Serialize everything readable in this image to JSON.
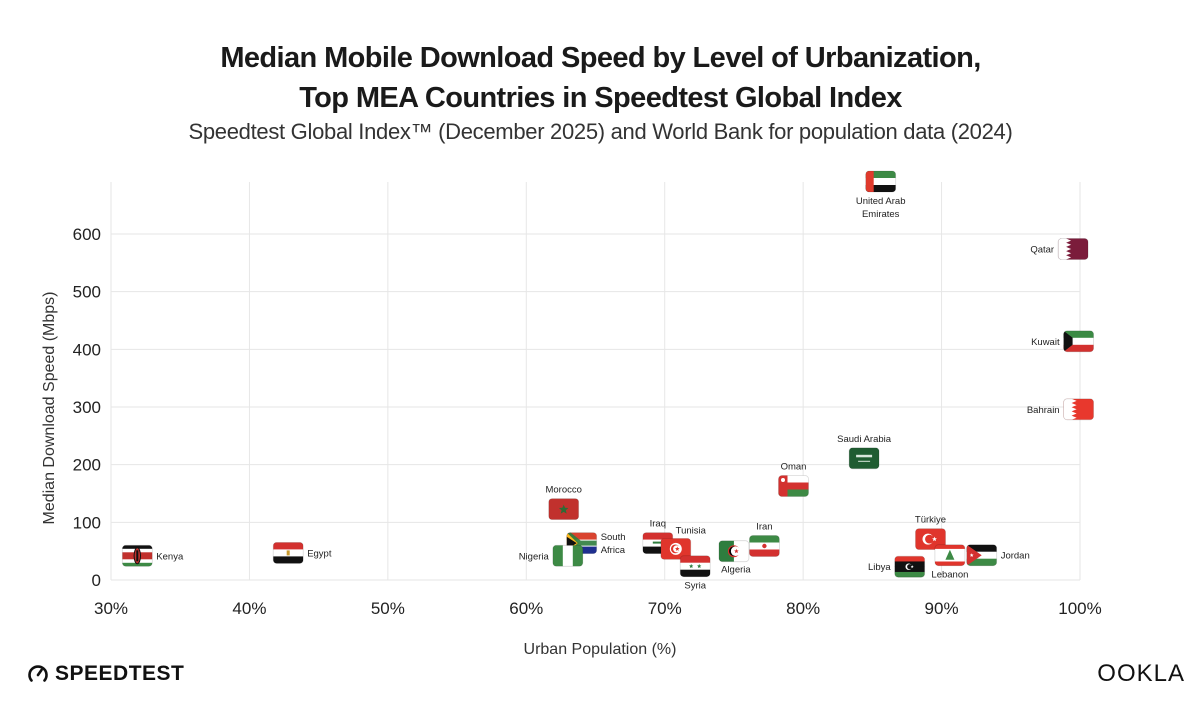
{
  "header": {
    "title_line1": "Median Mobile Download Speed by Level of Urbanization,",
    "title_line2": "Top MEA Countries in Speedtest Global Index",
    "subtitle": "Speedtest Global Index™ (December 2025) and World Bank for population data (2024)"
  },
  "footer": {
    "left_brand": "SPEEDTEST",
    "left_icon": "speedometer-gauge-icon",
    "right_brand": "OOKLA"
  },
  "chart_data": {
    "type": "scatter",
    "title": "Median Mobile Download Speed by Level of Urbanization, Top MEA Countries in Speedtest Global Index",
    "subtitle": "Speedtest Global Index™ (December 2025) and World Bank for population data (2024)",
    "xlabel": "Urban Population (%)",
    "ylabel": "Median Download Speed (Mbps)",
    "xlim": [
      30,
      100
    ],
    "ylim": [
      0,
      700
    ],
    "x_ticks": [
      30,
      40,
      50,
      60,
      70,
      80,
      90,
      100
    ],
    "x_tick_labels": [
      "30%",
      "40%",
      "50%",
      "60%",
      "70%",
      "80%",
      "90%",
      "100%"
    ],
    "y_ticks": [
      0,
      100,
      200,
      300,
      400,
      500,
      600
    ],
    "y_tick_labels": [
      "0",
      "100",
      "200",
      "300",
      "400",
      "500",
      "600"
    ],
    "grid": true,
    "marker": "country-flag",
    "points": [
      {
        "country": "United Arab Emirates",
        "label": [
          "United Arab",
          "Emirates"
        ],
        "x": 85.6,
        "y": 691,
        "flag": "uae",
        "label_pos": "below"
      },
      {
        "country": "Qatar",
        "label": [
          "Qatar"
        ],
        "x": 99.5,
        "y": 574,
        "flag": "qatar",
        "label_pos": "left"
      },
      {
        "country": "Kuwait",
        "label": [
          "Kuwait"
        ],
        "x": 99.9,
        "y": 414,
        "flag": "kuwait",
        "label_pos": "left"
      },
      {
        "country": "Bahrain",
        "label": [
          "Bahrain"
        ],
        "x": 99.9,
        "y": 296,
        "flag": "bahrain",
        "label_pos": "left"
      },
      {
        "country": "Saudi Arabia",
        "label": [
          "Saudi Arabia"
        ],
        "x": 84.4,
        "y": 211,
        "flag": "saudi",
        "label_pos": "above"
      },
      {
        "country": "Oman",
        "label": [
          "Oman"
        ],
        "x": 79.3,
        "y": 163,
        "flag": "oman",
        "label_pos": "above"
      },
      {
        "country": "Morocco",
        "label": [
          "Morocco"
        ],
        "x": 62.7,
        "y": 123,
        "flag": "morocco",
        "label_pos": "above"
      },
      {
        "country": "South Africa",
        "label": [
          "South",
          "Africa"
        ],
        "x": 64.0,
        "y": 64,
        "flag": "southafrica",
        "label_pos": "right"
      },
      {
        "country": "Nigeria",
        "label": [
          "Nigeria"
        ],
        "x": 63.0,
        "y": 42,
        "flag": "nigeria",
        "label_pos": "left"
      },
      {
        "country": "Iraq",
        "label": [
          "Iraq"
        ],
        "x": 69.5,
        "y": 64,
        "flag": "iraq",
        "label_pos": "above"
      },
      {
        "country": "Tunisia",
        "label": [
          "Tunisia"
        ],
        "x": 70.8,
        "y": 54,
        "flag": "tunisia",
        "label_pos": "above-right"
      },
      {
        "country": "Syria",
        "label": [
          "Syria"
        ],
        "x": 72.2,
        "y": 24,
        "flag": "syria",
        "label_pos": "below"
      },
      {
        "country": "Algeria",
        "label": [
          "Algeria"
        ],
        "x": 75.0,
        "y": 50,
        "flag": "algeria",
        "label_pos": "below-right"
      },
      {
        "country": "Iran",
        "label": [
          "Iran"
        ],
        "x": 77.2,
        "y": 59,
        "flag": "iran",
        "label_pos": "above"
      },
      {
        "country": "Türkiye",
        "label": [
          "Türkiye"
        ],
        "x": 89.2,
        "y": 71,
        "flag": "turkiye",
        "label_pos": "above"
      },
      {
        "country": "Lebanon",
        "label": [
          "Lebanon"
        ],
        "x": 90.6,
        "y": 43,
        "flag": "lebanon",
        "label_pos": "below"
      },
      {
        "country": "Jordan",
        "label": [
          "Jordan"
        ],
        "x": 92.9,
        "y": 43,
        "flag": "jordan",
        "label_pos": "right"
      },
      {
        "country": "Libya",
        "label": [
          "Libya"
        ],
        "x": 87.7,
        "y": 23,
        "flag": "libya",
        "label_pos": "left"
      },
      {
        "country": "Kenya",
        "label": [
          "Kenya"
        ],
        "x": 31.9,
        "y": 42,
        "flag": "kenya",
        "label_pos": "right"
      },
      {
        "country": "Egypt",
        "label": [
          "Egypt"
        ],
        "x": 42.8,
        "y": 47,
        "flag": "egypt",
        "label_pos": "right"
      }
    ]
  }
}
